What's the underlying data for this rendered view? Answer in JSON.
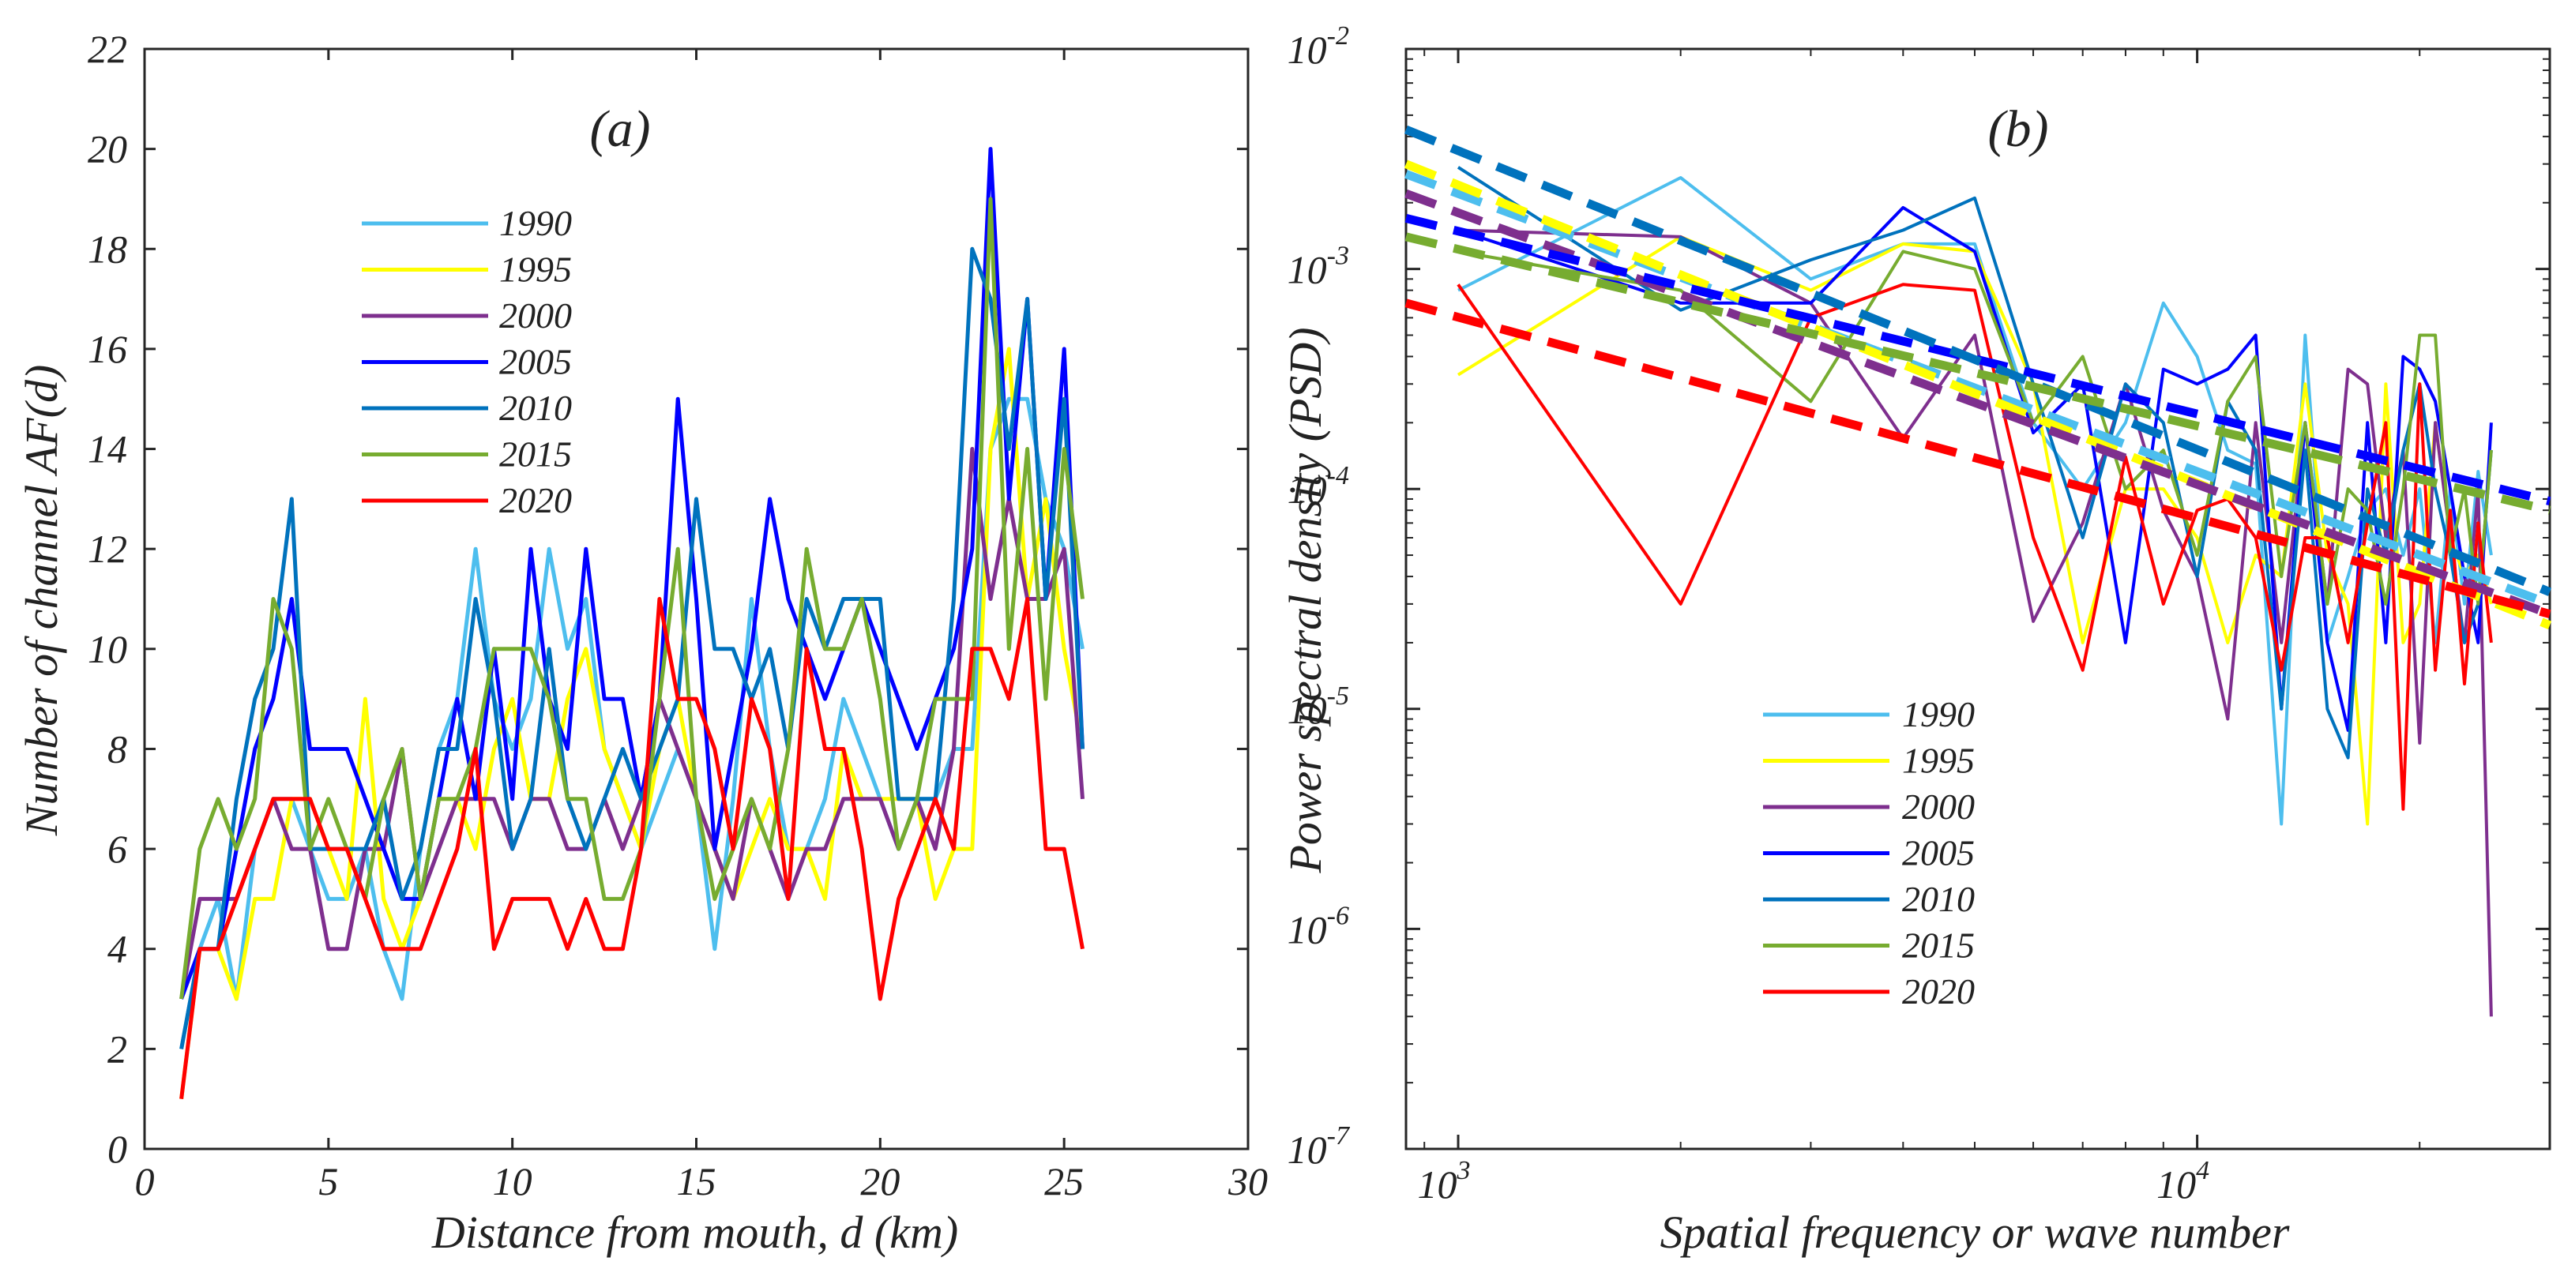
{
  "chart_data": [
    {
      "type": "line",
      "panel_label": "(a)",
      "xlabel": "Distance from mouth, d (km)",
      "ylabel": "Number of channel AF(d)",
      "xlim": [
        0,
        30
      ],
      "ylim": [
        0,
        22
      ],
      "xticks": [
        0,
        5,
        10,
        15,
        20,
        25,
        30
      ],
      "yticks": [
        0,
        2,
        4,
        6,
        8,
        10,
        12,
        14,
        16,
        18,
        20,
        22
      ],
      "grid": false,
      "legend_position": "upper-left",
      "x": [
        1,
        1.5,
        2,
        2.5,
        3,
        3.5,
        4,
        4.5,
        5,
        5.5,
        6,
        6.5,
        7,
        7.5,
        8,
        8.5,
        9,
        9.5,
        10,
        10.5,
        11,
        11.5,
        12,
        12.5,
        13,
        13.5,
        14,
        14.5,
        15,
        15.5,
        16,
        16.5,
        17,
        17.5,
        18,
        18.5,
        19,
        19.5,
        20,
        20.5,
        21,
        21.5,
        22,
        22.5,
        23,
        23.5,
        24,
        24.5,
        25,
        25.5
      ],
      "series": [
        {
          "name": "1990",
          "color": "#4DBEEE",
          "values": [
            2,
            4,
            5,
            3,
            6,
            7,
            7,
            6,
            5,
            5,
            6,
            4,
            3,
            6,
            8,
            9,
            12,
            9,
            8,
            9,
            12,
            10,
            11,
            8,
            7,
            6,
            7,
            8,
            7,
            4,
            7,
            11,
            8,
            6,
            6,
            7,
            9,
            8,
            7,
            6,
            7,
            7,
            8,
            8,
            14,
            15,
            15,
            13,
            12,
            10
          ]
        },
        {
          "name": "1995",
          "color": "#FFFF00",
          "values": [
            1,
            4,
            4,
            3,
            5,
            5,
            7,
            7,
            6,
            5,
            9,
            5,
            4,
            5,
            7,
            7,
            6,
            8,
            9,
            7,
            7,
            9,
            10,
            8,
            7,
            6,
            8,
            9,
            7,
            6,
            5,
            6,
            7,
            6,
            6,
            5,
            8,
            7,
            7,
            7,
            7,
            5,
            6,
            6,
            14,
            16,
            11,
            13,
            10,
            8
          ]
        },
        {
          "name": "2000",
          "color": "#7E2F8E",
          "values": [
            3,
            5,
            5,
            5,
            6,
            7,
            6,
            6,
            4,
            4,
            6,
            6,
            8,
            5,
            6,
            7,
            7,
            7,
            6,
            7,
            7,
            6,
            6,
            7,
            6,
            7,
            9,
            8,
            7,
            6,
            5,
            7,
            6,
            5,
            6,
            6,
            7,
            7,
            7,
            6,
            7,
            6,
            8,
            14,
            11,
            13,
            11,
            11,
            12,
            7
          ]
        },
        {
          "name": "2005",
          "color": "#0000FF",
          "values": [
            3,
            4,
            4,
            6,
            8,
            9,
            11,
            8,
            8,
            8,
            7,
            6,
            5,
            5,
            7,
            9,
            7,
            10,
            7,
            12,
            9,
            8,
            12,
            9,
            9,
            7,
            9,
            15,
            11,
            6,
            8,
            10,
            13,
            11,
            10,
            9,
            10,
            11,
            10,
            9,
            8,
            9,
            10,
            12,
            20,
            13,
            17,
            11,
            16,
            8
          ]
        },
        {
          "name": "2010",
          "color": "#0072BD",
          "values": [
            2,
            4,
            4,
            7,
            9,
            10,
            13,
            6,
            6,
            6,
            6,
            7,
            5,
            6,
            8,
            8,
            11,
            9,
            6,
            7,
            10,
            7,
            6,
            7,
            8,
            7,
            8,
            9,
            13,
            10,
            10,
            9,
            10,
            8,
            11,
            10,
            11,
            11,
            11,
            7,
            7,
            7,
            11,
            18,
            17,
            14,
            17,
            11,
            15,
            8
          ]
        },
        {
          "name": "2015",
          "color": "#77AC30",
          "values": [
            3,
            6,
            7,
            6,
            7,
            11,
            10,
            6,
            7,
            6,
            5,
            7,
            8,
            5,
            7,
            7,
            8,
            10,
            10,
            10,
            9,
            7,
            7,
            5,
            5,
            6,
            9,
            12,
            7,
            5,
            6,
            7,
            6,
            8,
            12,
            10,
            10,
            11,
            9,
            6,
            7,
            9,
            9,
            9,
            19,
            10,
            14,
            9,
            14,
            11
          ]
        },
        {
          "name": "2020",
          "color": "#FF0000",
          "values": [
            1,
            4,
            4,
            5,
            6,
            7,
            7,
            7,
            6,
            6,
            5,
            4,
            4,
            4,
            5,
            6,
            8,
            4,
            5,
            5,
            5,
            4,
            5,
            4,
            4,
            6,
            11,
            9,
            9,
            8,
            6,
            9,
            8,
            5,
            10,
            8,
            8,
            6,
            3,
            5,
            6,
            7,
            6,
            10,
            10,
            9,
            11,
            6,
            6,
            4
          ]
        }
      ]
    },
    {
      "type": "line",
      "panel_label": "(b)",
      "xlabel": "Spatial frequency or wave number",
      "ylabel": "Power spectral density (PSD)",
      "xscale": "log",
      "yscale": "log",
      "xlim": [
        850,
        30000
      ],
      "ylim": [
        1e-07,
        0.01
      ],
      "xticks": [
        {
          "base": "10",
          "exp": "3",
          "value": 1000
        },
        {
          "base": "10",
          "exp": "4",
          "value": 10000
        }
      ],
      "yticks": [
        {
          "base": "10",
          "exp": "-7",
          "value": 1e-07
        },
        {
          "base": "10",
          "exp": "-6",
          "value": 1e-06
        },
        {
          "base": "10",
          "exp": "-5",
          "value": 1e-05
        },
        {
          "base": "10",
          "exp": "-4",
          "value": 0.0001
        },
        {
          "base": "10",
          "exp": "-3",
          "value": 0.001
        },
        {
          "base": "10",
          "exp": "-2",
          "value": 0.01
        }
      ],
      "grid": false,
      "legend_position": "lower-left",
      "x": [
        1000,
        2000,
        3000,
        4000,
        5000,
        6000,
        7000,
        8000,
        9000,
        10000,
        11000,
        12000,
        13000,
        14000,
        15000,
        16000,
        17000,
        18000,
        19000,
        20000,
        21000,
        22000,
        23000,
        24000,
        25000
      ],
      "series": [
        {
          "name": "1990",
          "color": "#4DBEEE",
          "values": [
            0.0008,
            0.0026,
            0.0009,
            0.0013,
            0.0013,
            0.0002,
            0.0001,
            0.0002,
            0.0007,
            0.0004,
            0.00015,
            0.00013,
            3e-06,
            0.0005,
            2e-05,
            4e-05,
            8e-05,
            0.0001,
            5e-05,
            0.0001,
            2e-05,
            0.0001,
            3e-05,
            0.00012,
            5e-05
          ],
          "fit": [
            0.0027,
            3e-05
          ]
        },
        {
          "name": "1995",
          "color": "#FFFF00",
          "values": [
            0.00033,
            0.0014,
            0.0008,
            0.0013,
            0.0012,
            0.0003,
            2e-05,
            0.0001,
            0.0001,
            6e-05,
            2e-05,
            5e-05,
            4e-05,
            0.0003,
            5e-05,
            3e-05,
            3e-06,
            0.0003,
            2e-05,
            3e-05,
            0.0002,
            6e-05,
            4e-05,
            5e-05,
            3e-05
          ],
          "fit": [
            0.003,
            2.4e-05
          ]
        },
        {
          "name": "2000",
          "color": "#7E2F8E",
          "values": [
            0.0015,
            0.0014,
            0.0007,
            0.00017,
            0.0005,
            2.5e-05,
            7e-05,
            0.0003,
            8e-05,
            4e-05,
            9e-06,
            0.0002,
            2e-05,
            0.0002,
            3e-05,
            0.00035,
            0.0003,
            6e-05,
            0.00015,
            7e-06,
            0.0002,
            6e-05,
            2e-05,
            0.0001,
            4e-07
          ],
          "fit": [
            0.0022,
            2.7e-05
          ]
        },
        {
          "name": "2005",
          "color": "#0000FF",
          "values": [
            0.0015,
            0.0007,
            0.0007,
            0.0019,
            0.0012,
            0.00018,
            0.0003,
            2e-05,
            0.00035,
            0.0003,
            0.00035,
            0.0005,
            1e-05,
            0.0002,
            2e-05,
            8e-06,
            0.0002,
            2e-05,
            0.0004,
            0.00035,
            0.00025,
            0.0001,
            4e-05,
            2e-05,
            0.0002
          ],
          "fit": [
            0.0017,
            8.8e-05
          ]
        },
        {
          "name": "2010",
          "color": "#0072BD",
          "values": [
            0.0029,
            0.00065,
            0.0011,
            0.0015,
            0.0021,
            0.0003,
            6e-05,
            0.0003,
            0.0002,
            4e-05,
            0.00025,
            0.00015,
            1e-05,
            0.00015,
            1e-05,
            6e-06,
            0.0001,
            5e-05,
            0.00015,
            0.0003,
            0.0001,
            5e-05,
            2e-05,
            3e-05,
            0.00015
          ],
          "fit": [
            0.0043,
            3.4e-05
          ]
        },
        {
          "name": "2015",
          "color": "#77AC30",
          "values": [
            0.0012,
            0.0008,
            0.00025,
            0.0012,
            0.001,
            0.0002,
            0.0004,
            0.0001,
            0.00015,
            5e-05,
            0.00025,
            0.0004,
            4e-05,
            0.0002,
            3e-05,
            0.0001,
            8e-05,
            3e-05,
            0.0001,
            0.0005,
            0.0005,
            5e-05,
            0.0001,
            3e-05,
            0.00015
          ],
          "fit": [
            0.0014,
            8e-05
          ]
        },
        {
          "name": "2020",
          "color": "#FF0000",
          "values": [
            0.00085,
            3e-05,
            0.0006,
            0.00085,
            0.0008,
            6e-05,
            1.5e-05,
            0.00014,
            3e-05,
            8e-05,
            9e-05,
            6e-05,
            1.5e-05,
            6e-05,
            6e-05,
            2e-05,
            7e-05,
            0.0002,
            3.5e-06,
            0.0003,
            1.5e-05,
            8e-05,
            1.3e-05,
            7e-05,
            2e-05
          ],
          "fit": [
            0.0007,
            2.7e-05
          ]
        }
      ]
    }
  ]
}
